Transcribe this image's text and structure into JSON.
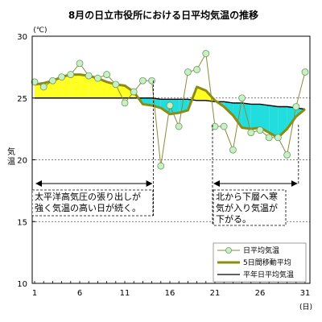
{
  "chart_data": {
    "type": "line",
    "title": "8月の日立市役所における日平均気温の推移",
    "y_unit": "(℃)",
    "x_unit": "(日)",
    "ylabel": "気温",
    "ylim": [
      10,
      30
    ],
    "xlim": [
      1,
      31
    ],
    "y_ticks": [
      10,
      15,
      20,
      25,
      30
    ],
    "x_ticks": [
      1,
      6,
      11,
      16,
      21,
      26,
      31
    ],
    "grid": "dashed horizontal lines at 15, 20, 25, 30",
    "colors": {
      "daily_line": "#8a8a3a",
      "daily_marker_fill": "#c8f0c0",
      "daily_marker_stroke": "#6a9a6a",
      "moving_avg": "#8c8c10",
      "normal": "#000000",
      "above_fill": "#ffff22",
      "below_fill": "#22dddd"
    },
    "series": [
      {
        "name": "日平均気温",
        "x": [
          1,
          2,
          3,
          4,
          5,
          6,
          7,
          8,
          9,
          10,
          11,
          12,
          13,
          14,
          15,
          16,
          17,
          18,
          19,
          20,
          21,
          22,
          23,
          24,
          25,
          26,
          27,
          28,
          29,
          30,
          31
        ],
        "values": [
          26.3,
          25.9,
          26.4,
          26.7,
          26.9,
          27.8,
          26.8,
          26.6,
          26.9,
          26.1,
          24.6,
          25.5,
          26.4,
          26.4,
          19.5,
          24.4,
          22.7,
          27.1,
          27.3,
          28.6,
          22.7,
          22.7,
          20.8,
          25.0,
          22.2,
          22.4,
          21.8,
          21.8,
          20.4,
          24.3,
          27.1
        ]
      },
      {
        "name": "5日間移動平均",
        "x": [
          1,
          2,
          3,
          4,
          5,
          6,
          7,
          8,
          9,
          10,
          11,
          12,
          13,
          14,
          15,
          16,
          17,
          18,
          19,
          20,
          21,
          22,
          23,
          24,
          25,
          26,
          27,
          28,
          29,
          30,
          31
        ],
        "values": [
          26.1,
          26.2,
          26.4,
          26.7,
          26.9,
          26.9,
          26.8,
          26.6,
          26.3,
          26.1,
          26.0,
          25.5,
          24.5,
          24.4,
          24.2,
          23.7,
          23.8,
          24.0,
          25.9,
          25.6,
          24.8,
          24.3,
          23.6,
          22.6,
          22.5,
          22.6,
          22.2,
          21.8,
          22.5,
          23.5,
          24.1
        ]
      },
      {
        "name": "平年日平均気温",
        "x": [
          1,
          2,
          3,
          4,
          5,
          6,
          7,
          8,
          9,
          10,
          11,
          12,
          13,
          14,
          15,
          16,
          17,
          18,
          19,
          20,
          21,
          22,
          23,
          24,
          25,
          26,
          27,
          28,
          29,
          30,
          31
        ],
        "values": [
          25.0,
          25.0,
          25.0,
          25.0,
          25.0,
          25.0,
          25.0,
          25.0,
          25.0,
          25.0,
          25.0,
          25.0,
          25.0,
          25.0,
          24.9,
          24.9,
          24.9,
          24.9,
          24.8,
          24.8,
          24.7,
          24.7,
          24.6,
          24.6,
          24.5,
          24.5,
          24.4,
          24.3,
          24.3,
          24.2,
          24.1
        ]
      }
    ],
    "legend": {
      "placement": "bottom-right",
      "entries": [
        "日平均気温",
        "5日間移動平均",
        "平年日平均気温"
      ]
    },
    "annotations": [
      {
        "lines": [
          "太平洋高気圧の張り出しが",
          "強く気温の高い日が続く。"
        ],
        "x_range": [
          1,
          14
        ]
      },
      {
        "lines": [
          "北から下層へ寒",
          "気が入り気温が",
          "下がる。"
        ],
        "x_range": [
          21,
          30
        ]
      }
    ]
  }
}
